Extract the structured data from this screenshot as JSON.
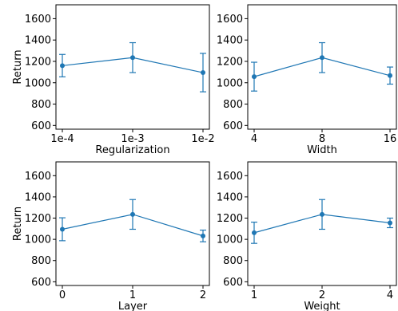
{
  "chart_data": [
    {
      "type": "line",
      "xlabel": "Regularization",
      "ylabel": "Return",
      "categories": [
        "1e-4",
        "1e-3",
        "1e-2"
      ],
      "values": [
        1160,
        1235,
        1095
      ],
      "errors": [
        105,
        140,
        180
      ],
      "yticks": [
        600,
        800,
        1000,
        1200,
        1400,
        1600
      ],
      "ylim": [
        565,
        1730
      ],
      "color": "#1f77b4"
    },
    {
      "type": "line",
      "xlabel": "Width",
      "ylabel": "",
      "categories": [
        "4",
        "8",
        "16"
      ],
      "values": [
        1057,
        1235,
        1067
      ],
      "errors": [
        135,
        140,
        80
      ],
      "yticks": [
        600,
        800,
        1000,
        1200,
        1400,
        1600
      ],
      "ylim": [
        565,
        1730
      ],
      "color": "#1f77b4"
    },
    {
      "type": "line",
      "xlabel": "Layer",
      "ylabel": "Return",
      "categories": [
        "0",
        "1",
        "2"
      ],
      "values": [
        1095,
        1235,
        1032
      ],
      "errors": [
        108,
        140,
        55
      ],
      "yticks": [
        600,
        800,
        1000,
        1200,
        1400,
        1600
      ],
      "ylim": [
        565,
        1730
      ],
      "color": "#1f77b4"
    },
    {
      "type": "line",
      "xlabel": "Weight",
      "ylabel": "",
      "categories": [
        "1",
        "2",
        "4"
      ],
      "values": [
        1062,
        1235,
        1155
      ],
      "errors": [
        100,
        140,
        45
      ],
      "yticks": [
        600,
        800,
        1000,
        1200,
        1400,
        1600
      ],
      "ylim": [
        565,
        1730
      ],
      "color": "#1f77b4"
    }
  ]
}
